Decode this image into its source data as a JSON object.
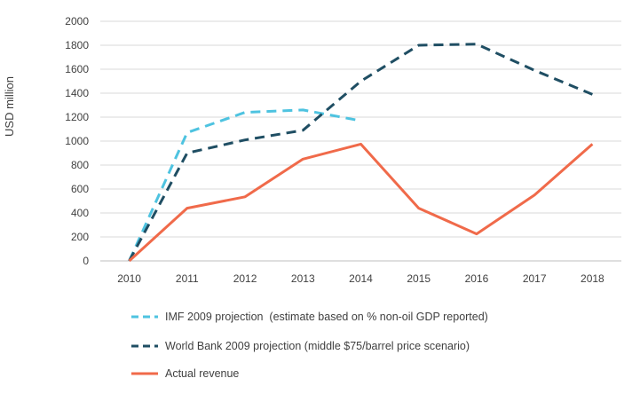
{
  "chart_data": {
    "type": "line",
    "title": "",
    "xlabel": "",
    "ylabel": "USD million",
    "x": [
      2010,
      2011,
      2012,
      2013,
      2014,
      2015,
      2016,
      2017,
      2018
    ],
    "ylim": [
      0,
      2000
    ],
    "yticks": [
      0,
      200,
      400,
      600,
      800,
      1000,
      1200,
      1400,
      1600,
      1800,
      2000
    ],
    "grid": "horizontal",
    "legend_position": "bottom",
    "series": [
      {
        "name": "IMF 2009 projection  (estimate based on % non-oil GDP reported)",
        "color": "#4ec3e0",
        "style": "dashed",
        "values": [
          0,
          1070,
          1240,
          1260,
          1170,
          null,
          null,
          null,
          null
        ]
      },
      {
        "name": "World Bank 2009 projection (middle $75/barrel price scenario)",
        "color": "#1f4e63",
        "style": "dashed",
        "values": [
          0,
          900,
          1010,
          1090,
          1500,
          1800,
          1810,
          1590,
          1390
        ]
      },
      {
        "name": "Actual revenue",
        "color": "#f06a4a",
        "style": "solid",
        "values": [
          0,
          440,
          535,
          850,
          975,
          440,
          225,
          550,
          975
        ]
      }
    ]
  }
}
